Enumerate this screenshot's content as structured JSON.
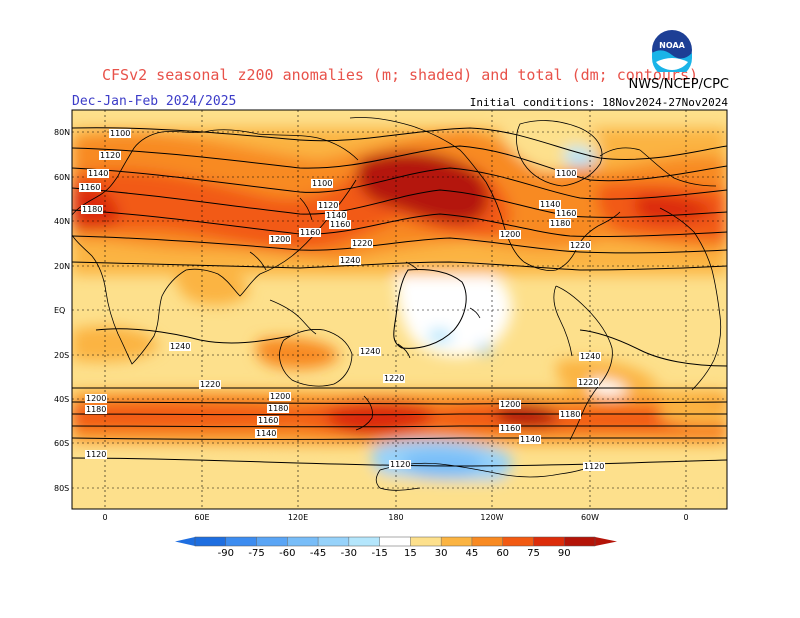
{
  "header": {
    "title": "CFSv2 seasonal z200 anomalies (m; shaded) and total (dm; contours)",
    "period": "Dec-Jan-Feb 2024/2025",
    "initial_conditions": "Initial conditions: 18Nov2024-27Nov2024",
    "agency": "NWS/NCEP/CPC",
    "logo_text": "NOAA"
  },
  "map": {
    "lat_labels": [
      "80N",
      "60N",
      "40N",
      "20N",
      "EQ",
      "20S",
      "40S",
      "60S",
      "80S"
    ],
    "lon_labels": [
      "0",
      "60E",
      "120E",
      "180",
      "120W",
      "60W",
      "0"
    ],
    "contour_labels": [
      "1100",
      "1120",
      "1140",
      "1160",
      "1180",
      "1200",
      "1220",
      "1240"
    ]
  },
  "colorbar": {
    "ticks": [
      "-90",
      "-75",
      "-60",
      "-45",
      "-30",
      "-15",
      "15",
      "30",
      "45",
      "60",
      "75",
      "90"
    ],
    "colors": [
      "#1e6ee0",
      "#3c8cf0",
      "#5aa5f5",
      "#78bdf8",
      "#96d2fa",
      "#b4e6fc",
      "#ffffff",
      "#fde08c",
      "#fbb442",
      "#f88a22",
      "#f25a12",
      "#dc2c0a",
      "#b41408"
    ]
  },
  "colors": {
    "title": "#e8524a",
    "period": "#3c3cc8"
  }
}
